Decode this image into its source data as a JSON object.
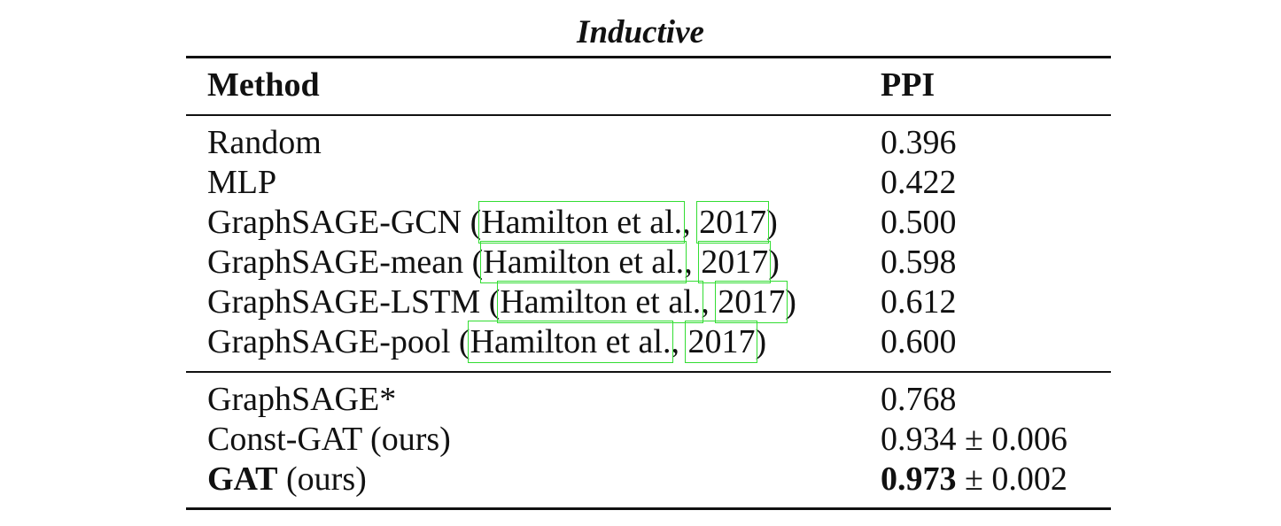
{
  "title": "Inductive",
  "header": [
    "Method",
    "PPI"
  ],
  "groups": [
    [
      {
        "method": [
          "Random"
        ],
        "ppi": [
          "0.396"
        ]
      },
      {
        "method": [
          "MLP"
        ],
        "ppi": [
          "0.422"
        ]
      },
      {
        "method": [
          "GraphSAGE-GCN (",
          {
            "text": "Hamilton et al.",
            "link": true
          },
          ", ",
          {
            "text": "2017",
            "link": true
          },
          ")"
        ],
        "ppi": [
          "0.500"
        ]
      },
      {
        "method": [
          "GraphSAGE-mean (",
          {
            "text": "Hamilton et al.",
            "link": true
          },
          ", ",
          {
            "text": "2017",
            "link": true
          },
          ")"
        ],
        "ppi": [
          "0.598"
        ]
      },
      {
        "method": [
          "GraphSAGE-LSTM (",
          {
            "text": "Hamilton et al.",
            "link": true
          },
          ", ",
          {
            "text": "2017",
            "link": true
          },
          ")"
        ],
        "ppi": [
          "0.612"
        ]
      },
      {
        "method": [
          "GraphSAGE-pool (",
          {
            "text": "Hamilton et al.",
            "link": true
          },
          ", ",
          {
            "text": "2017",
            "link": true
          },
          ")"
        ],
        "ppi": [
          "0.600"
        ]
      }
    ],
    [
      {
        "method": [
          "GraphSAGE*"
        ],
        "ppi": [
          "0.768"
        ]
      },
      {
        "method": [
          "Const-GAT (ours)"
        ],
        "ppi": [
          "0.934 ± 0.006"
        ]
      },
      {
        "method": [
          {
            "text": "GAT",
            "bold": true
          },
          " (ours)"
        ],
        "ppi": [
          {
            "text": "0.973",
            "bold": true
          },
          " ± 0.002"
        ]
      }
    ]
  ]
}
